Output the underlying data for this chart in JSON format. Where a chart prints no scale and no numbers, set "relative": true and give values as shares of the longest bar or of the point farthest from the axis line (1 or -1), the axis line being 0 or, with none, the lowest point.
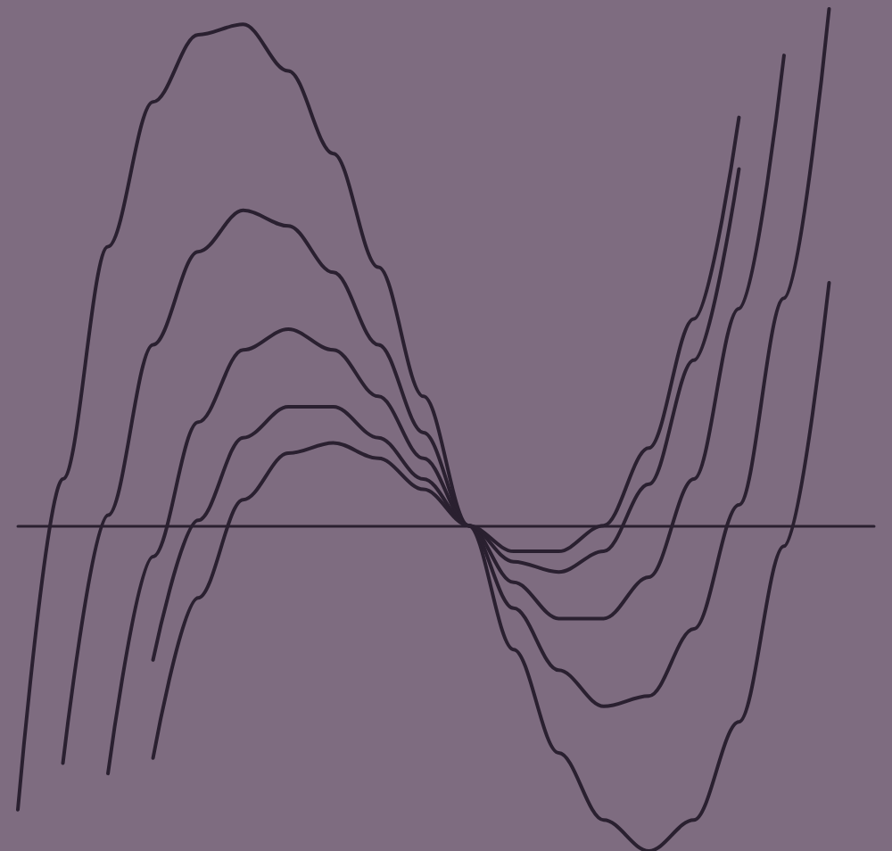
{
  "chart_data": {
    "type": "line",
    "relative": true,
    "tick_labels": false,
    "grid": false,
    "marker": "none",
    "line_style": "solid",
    "categories": [
      null,
      null,
      null,
      null,
      null,
      null,
      null,
      null,
      null,
      null,
      null,
      null,
      null,
      null,
      null,
      null,
      null,
      null,
      null,
      null
    ],
    "series": [
      {
        "color": "#2a2030",
        "values": [
          -0.55,
          0.09,
          0.54,
          0.82,
          0.95,
          0.97,
          0.88,
          0.72,
          0.5,
          0.25,
          0,
          -0.24,
          -0.44,
          -0.57,
          -0.63,
          -0.57,
          -0.38,
          -0.04,
          0.47,
          null
        ]
      },
      {
        "color": "#2a2030",
        "values": [
          null,
          -0.46,
          0.02,
          0.35,
          0.53,
          0.61,
          0.58,
          0.49,
          0.35,
          0.18,
          0,
          -0.16,
          -0.28,
          -0.35,
          -0.33,
          -0.2,
          0.04,
          0.44,
          1,
          null
        ]
      },
      {
        "color": "#2a2030",
        "values": [
          null,
          null,
          -0.48,
          -0.06,
          0.2,
          0.34,
          0.38,
          0.34,
          0.25,
          0.13,
          0,
          -0.11,
          -0.18,
          -0.18,
          -0.1,
          0.09,
          0.42,
          0.91,
          null,
          null
        ]
      },
      {
        "color": "#2a2030",
        "values": [
          null,
          null,
          null,
          -0.26,
          0.01,
          0.17,
          0.23,
          0.23,
          0.17,
          0.09,
          0,
          -0.07,
          -0.09,
          -0.05,
          0.08,
          0.32,
          0.69,
          null,
          null,
          null
        ]
      },
      {
        "color": "#2a2030",
        "values": [
          null,
          null,
          null,
          -0.45,
          -0.14,
          0.05,
          0.14,
          0.16,
          0.13,
          0.07,
          0,
          -0.05,
          -0.05,
          0.0,
          0.15,
          0.4,
          0.79,
          null,
          null,
          null
        ]
      }
    ]
  }
}
